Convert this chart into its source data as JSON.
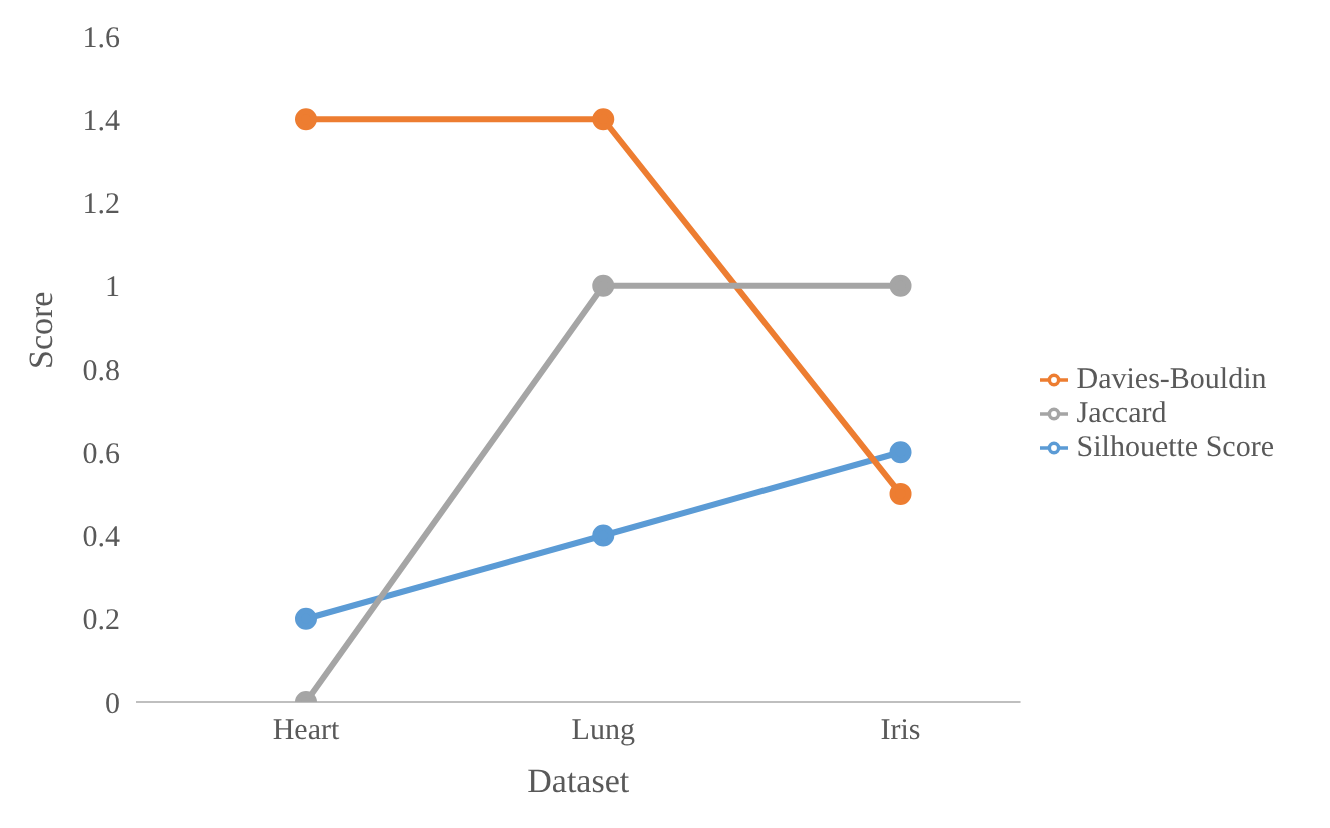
{
  "chart_data": {
    "type": "line",
    "xlabel": "Dataset",
    "ylabel": "Score",
    "categories": [
      "Heart",
      "Lung",
      "Iris"
    ],
    "series": [
      {
        "name": "Silhouette Score",
        "color": "#5b9bd5",
        "values": [
          0.2,
          0.4,
          0.6
        ]
      },
      {
        "name": "Davies-Bouldin",
        "color": "#ed7d31",
        "values": [
          1.4,
          1.4,
          0.5
        ]
      },
      {
        "name": "Jaccard",
        "color": "#a5a5a5",
        "values": [
          0,
          1,
          1
        ]
      }
    ],
    "ylim": [
      0,
      1.6
    ],
    "yticks": [
      0,
      0.2,
      0.4,
      0.6,
      0.8,
      1,
      1.2,
      1.4,
      1.6
    ],
    "grid": false,
    "legend": "right",
    "marker": "circle",
    "line_style": "solid"
  }
}
